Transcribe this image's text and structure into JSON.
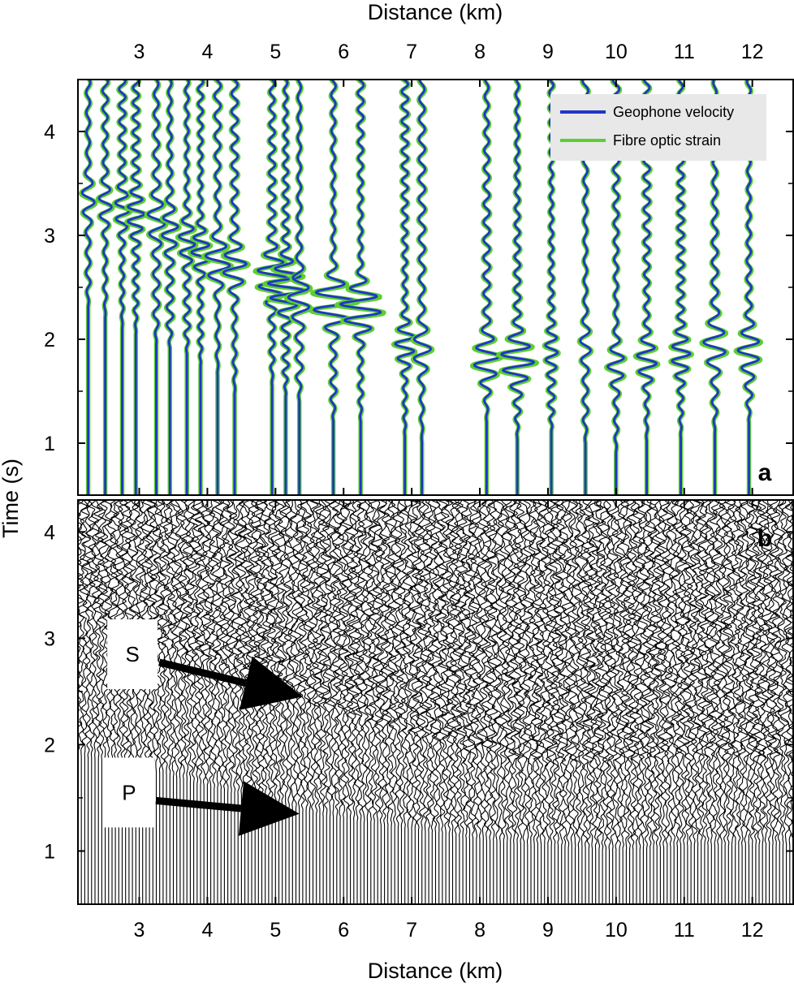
{
  "chart_data": [
    {
      "panel": "a",
      "type": "line",
      "xlabel": "Distance (km)",
      "ylabel": "Time (s)",
      "xlim": [
        2.1,
        12.6
      ],
      "ylim": [
        0.5,
        4.5
      ],
      "xticks": [
        3,
        4,
        5,
        6,
        7,
        8,
        9,
        10,
        11,
        12
      ],
      "yticks": [
        1,
        2,
        3,
        4
      ],
      "legend_position": "top-right",
      "series": [
        {
          "name": "Geophone velocity",
          "color": "#1f35c8"
        },
        {
          "name": "Fibre optic strain",
          "color": "#5ccf2e"
        }
      ],
      "trace_offsets_km": [
        2.25,
        2.5,
        2.75,
        2.95,
        3.25,
        3.45,
        3.7,
        3.9,
        4.15,
        4.4,
        4.95,
        5.15,
        5.35,
        5.85,
        6.25,
        6.9,
        7.15,
        8.1,
        8.55,
        9.05,
        9.55,
        10.0,
        10.45,
        10.95,
        11.45,
        11.95
      ],
      "first_arrival_s": [
        2.3,
        2.2,
        2.1,
        2.05,
        1.95,
        1.9,
        1.85,
        1.75,
        1.65,
        1.45,
        1.55,
        1.45,
        1.4,
        1.2,
        1.2,
        1.05,
        1.0,
        1.2,
        1.05,
        1.1,
        1.0,
        0.9,
        1.0,
        1.05,
        1.1,
        1.2
      ],
      "packet_time_s": [
        3.35,
        3.3,
        3.25,
        3.2,
        3.15,
        3.05,
        2.95,
        2.85,
        2.75,
        2.7,
        2.6,
        2.5,
        2.4,
        2.35,
        2.3,
        1.95,
        1.9,
        1.8,
        1.8,
        1.9,
        1.95,
        1.75,
        1.8,
        1.85,
        1.95,
        1.9
      ],
      "packet_amplitude_km": [
        0.07,
        0.07,
        0.07,
        0.08,
        0.08,
        0.08,
        0.09,
        0.11,
        0.16,
        0.14,
        0.18,
        0.22,
        0.12,
        0.28,
        0.28,
        0.12,
        0.1,
        0.15,
        0.2,
        0.05,
        0.05,
        0.1,
        0.12,
        0.1,
        0.12,
        0.12
      ],
      "panel_letter": "a"
    },
    {
      "panel": "b",
      "type": "line",
      "xlabel": "Distance (km)",
      "ylabel": "Time (s)",
      "xlim": [
        2.1,
        12.6
      ],
      "ylim": [
        0.5,
        4.3
      ],
      "xticks": [
        3,
        4,
        5,
        6,
        7,
        8,
        9,
        10,
        11,
        12
      ],
      "yticks": [
        1,
        2,
        3,
        4
      ],
      "trace_spacing_km": 0.05,
      "onset_profile": {
        "x_km": [
          2.1,
          3.0,
          4.0,
          5.0,
          5.5,
          6.0,
          7.0,
          8.0,
          9.0,
          10.0,
          11.0,
          12.0,
          12.6
        ],
        "onset_s": [
          1.9,
          1.8,
          1.6,
          1.45,
          1.35,
          1.3,
          1.2,
          1.1,
          1.05,
          1.0,
          1.05,
          1.05,
          1.05
        ]
      },
      "s_arrival_profile": {
        "x_km": [
          2.1,
          4.0,
          5.0,
          6.0,
          7.0,
          8.0,
          9.0,
          10.0,
          11.0,
          12.6
        ],
        "time_s": [
          3.2,
          2.8,
          2.5,
          2.3,
          2.1,
          1.9,
          1.85,
          1.85,
          1.9,
          1.9
        ]
      },
      "annotations": [
        {
          "label": "S",
          "box_x_km": 2.9,
          "box_y_s": 2.85,
          "arrow_to": [
            5.4,
            2.45
          ]
        },
        {
          "label": "P",
          "box_x_km": 2.85,
          "box_y_s": 1.55,
          "arrow_to": [
            5.35,
            1.35
          ]
        }
      ],
      "panel_letter": "b"
    }
  ]
}
